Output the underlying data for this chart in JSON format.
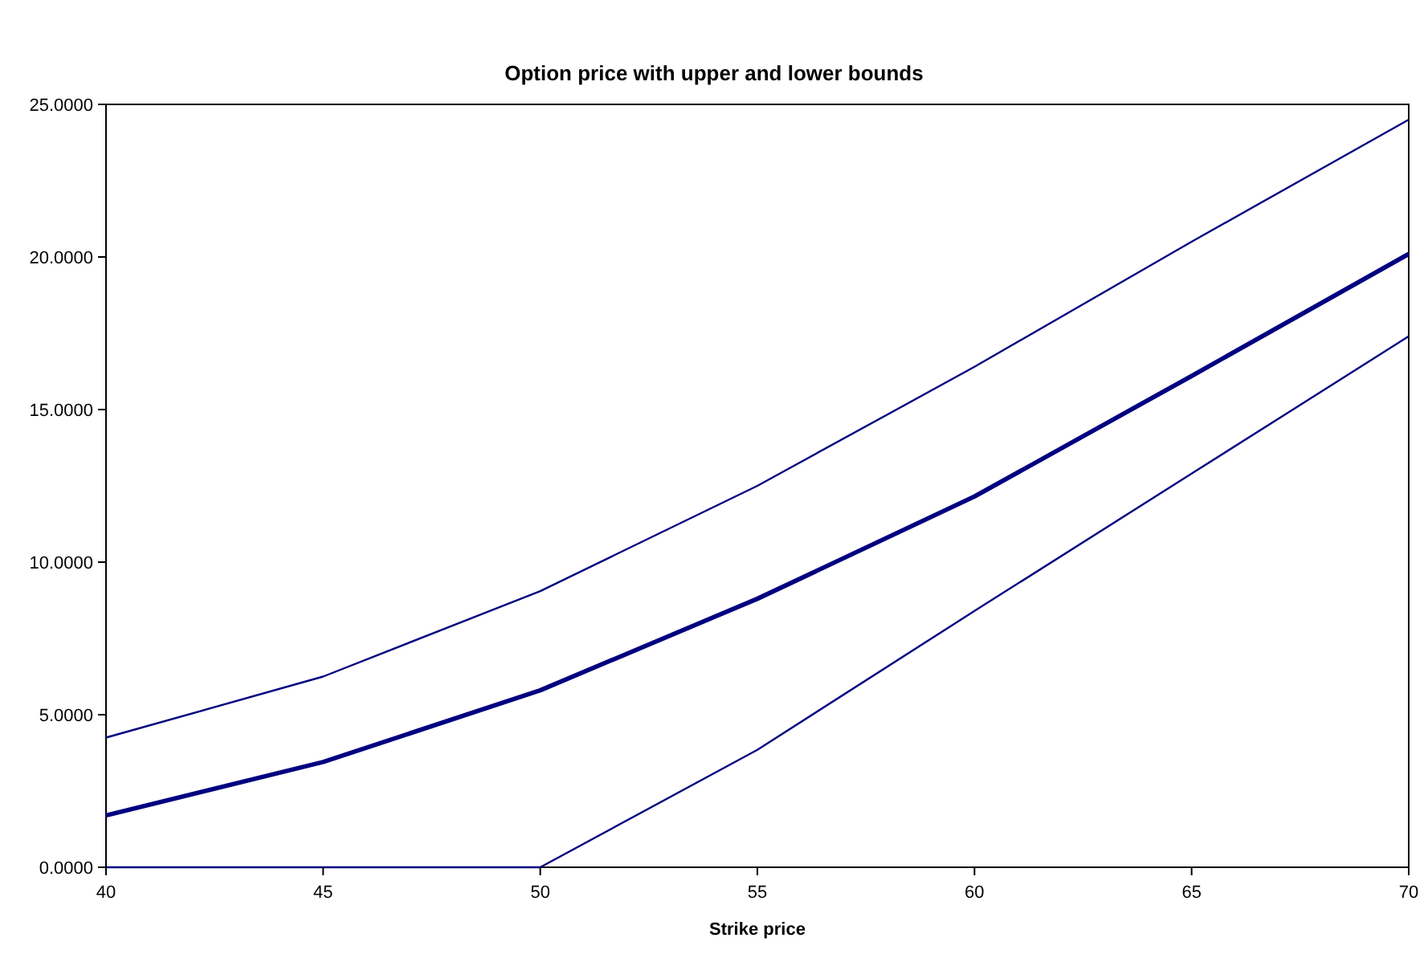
{
  "chart_data": {
    "type": "line",
    "title": "Option price with upper and lower bounds",
    "xlabel": "Strike price",
    "x": [
      40,
      45,
      50,
      55,
      60,
      65,
      70
    ],
    "xlim": [
      40,
      70
    ],
    "xticks": [
      40,
      45,
      50,
      55,
      60,
      65,
      70
    ],
    "ylim": [
      0,
      25
    ],
    "yticks": [
      {
        "value": 0,
        "label": "0.0000"
      },
      {
        "value": 5,
        "label": "5.0000"
      },
      {
        "value": 10,
        "label": "10.0000"
      },
      {
        "value": 15,
        "label": "15.0000"
      },
      {
        "value": 20,
        "label": "20.0000"
      },
      {
        "value": 25,
        "label": "25.0000"
      }
    ],
    "grid": false,
    "marker": "none",
    "line_style": "solid",
    "series": [
      {
        "color": "#000080",
        "values": [
          4.25,
          6.25,
          9.05,
          12.5,
          16.4,
          20.5,
          24.5
        ]
      },
      {
        "color": "#000080",
        "values": [
          1.7,
          3.45,
          5.8,
          8.8,
          12.15,
          16.1,
          20.1
        ]
      },
      {
        "color": "#000080",
        "values": [
          0,
          0,
          0,
          3.85,
          8.4,
          12.9,
          17.4
        ]
      }
    ]
  }
}
